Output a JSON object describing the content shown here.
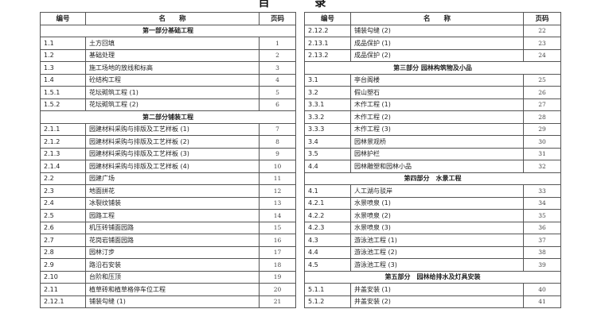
{
  "title": "目 录",
  "headers": {
    "id": "编号",
    "name": "名　　称",
    "page": "页码"
  },
  "left": [
    {
      "section": "第一部分基础工程"
    },
    {
      "id": "1.1",
      "name": "土方回填",
      "page": "1"
    },
    {
      "id": "1.2",
      "name": "基础处理",
      "page": "2"
    },
    {
      "id": "1.3",
      "name": "施工场地的放线和标高",
      "page": "3"
    },
    {
      "id": "1.4",
      "name": "砼结构工程",
      "page": "4"
    },
    {
      "id": "1.5.1",
      "name": "花坛砌筑工程 (1)",
      "page": "5"
    },
    {
      "id": "1.5.2",
      "name": "花坛砌筑工程 (2)",
      "page": "6"
    },
    {
      "section": "第二部分铺装工程"
    },
    {
      "id": "2.1.1",
      "name": "园建材料采购与排版及工艺样板 (1)",
      "page": "7"
    },
    {
      "id": "2.1.2",
      "name": "园建材料采购与排版及工艺样板 (2)",
      "page": "8"
    },
    {
      "id": "2.1.3",
      "name": "园建材料采购与排版及工艺样板 (3)",
      "page": "9"
    },
    {
      "id": "2.1.4",
      "name": "园建材料采购与排版及工艺样板 (4)",
      "page": "10"
    },
    {
      "id": "2.2",
      "name": "园建广场",
      "page": "11"
    },
    {
      "id": "2.3",
      "name": "地面拼花",
      "page": "12"
    },
    {
      "id": "2.4",
      "name": "冰裂纹铺装",
      "page": "13"
    },
    {
      "id": "2.5",
      "name": "园路工程",
      "page": "14"
    },
    {
      "id": "2.6",
      "name": "机压砖铺面园路",
      "page": "15"
    },
    {
      "id": "2.7",
      "name": "花岗岩铺面园路",
      "page": "16"
    },
    {
      "id": "2.8",
      "name": "园林汀步",
      "page": "17"
    },
    {
      "id": "2.9",
      "name": "路沿石安装",
      "page": "18"
    },
    {
      "id": "2.10",
      "name": "台阶和压顶",
      "page": "19"
    },
    {
      "id": "2.11",
      "name": "植草砖和植草格停车位工程",
      "page": "20"
    },
    {
      "id": "2.12.1",
      "name": "铺装勾缝 (1)",
      "page": "21"
    }
  ],
  "right": [
    {
      "id": "2.12.2",
      "name": "铺装勾缝 (2)",
      "page": "22"
    },
    {
      "id": "2.13.1",
      "name": "成品保护 (1)",
      "page": "23"
    },
    {
      "id": "2.13.2",
      "name": "成品保护 (2)",
      "page": "24"
    },
    {
      "section": "第三部分 园林构筑物及小品"
    },
    {
      "id": "3.1",
      "name": "亭台阁楼",
      "page": "25"
    },
    {
      "id": "3.2",
      "name": "假山塑石",
      "page": "26"
    },
    {
      "id": "3.3.1",
      "name": "木作工程 (1)",
      "page": "27"
    },
    {
      "id": "3.3.2",
      "name": "木作工程 (2)",
      "page": "28"
    },
    {
      "id": "3.3.3",
      "name": "木作工程 (3)",
      "page": "29"
    },
    {
      "id": "3.4",
      "name": "园林景观桥",
      "page": "30"
    },
    {
      "id": "3.5",
      "name": "园林护栏",
      "page": "31"
    },
    {
      "id": "4.4",
      "name": "园林雕塑和园林小品",
      "page": "32"
    },
    {
      "section": "第四部分　水景工程"
    },
    {
      "id": "4.1",
      "name": "人工湖与驳岸",
      "page": "33"
    },
    {
      "id": "4.2.1",
      "name": "水景喷泉 (1)",
      "page": "34"
    },
    {
      "id": "4.2.2",
      "name": "水景喷泉 (2)",
      "page": "35"
    },
    {
      "id": "4.2.3",
      "name": "水景喷泉 (3)",
      "page": "36"
    },
    {
      "id": "4.3",
      "name": "游泳池工程 (1)",
      "page": "37"
    },
    {
      "id": "4.4",
      "name": "游泳池工程 (2)",
      "page": "38"
    },
    {
      "id": "4.5",
      "name": "游泳池工程 (3)",
      "page": "39"
    },
    {
      "section": "第五部分　园林给排水及灯具安装"
    },
    {
      "id": "5.1.1",
      "name": "井盖安装 (1)",
      "page": "40"
    },
    {
      "id": "5.1.2",
      "name": "井盖安装 (2)",
      "page": "41"
    }
  ]
}
